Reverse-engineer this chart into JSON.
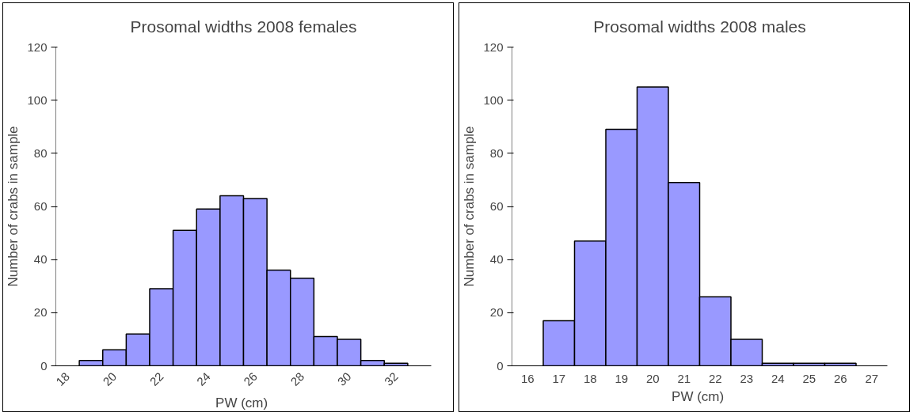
{
  "chart_data": [
    {
      "type": "bar",
      "title": "Prosomal widths 2008 females",
      "xlabel": "PW  (cm)",
      "ylabel": "Number of crabs in sample",
      "categories": [
        "18",
        null,
        "20",
        null,
        "22",
        null,
        "24",
        null,
        "26",
        null,
        "28",
        null,
        "30",
        null,
        "32",
        null
      ],
      "values": [
        null,
        2,
        6,
        12,
        29,
        51,
        59,
        64,
        63,
        36,
        33,
        11,
        10,
        2,
        1,
        null
      ],
      "color": "#9999ff",
      "ylim": [
        0,
        120
      ],
      "yticks": [
        0,
        20,
        40,
        60,
        80,
        100,
        120
      ],
      "grid": false
    },
    {
      "type": "bar",
      "title": "Prosomal widths 2008 males",
      "xlabel": "PW  (cm)",
      "ylabel": "Number of crabs in sample",
      "categories": [
        "16",
        "17",
        "18",
        "19",
        "20",
        "21",
        "22",
        "23",
        "24",
        "25",
        "26",
        "27"
      ],
      "values": [
        null,
        17,
        47,
        89,
        105,
        69,
        26,
        10,
        1,
        1,
        1,
        null
      ],
      "color": "#9999ff",
      "ylim": [
        0,
        120
      ],
      "yticks": [
        0,
        20,
        40,
        60,
        80,
        100,
        120
      ],
      "grid": false
    }
  ]
}
